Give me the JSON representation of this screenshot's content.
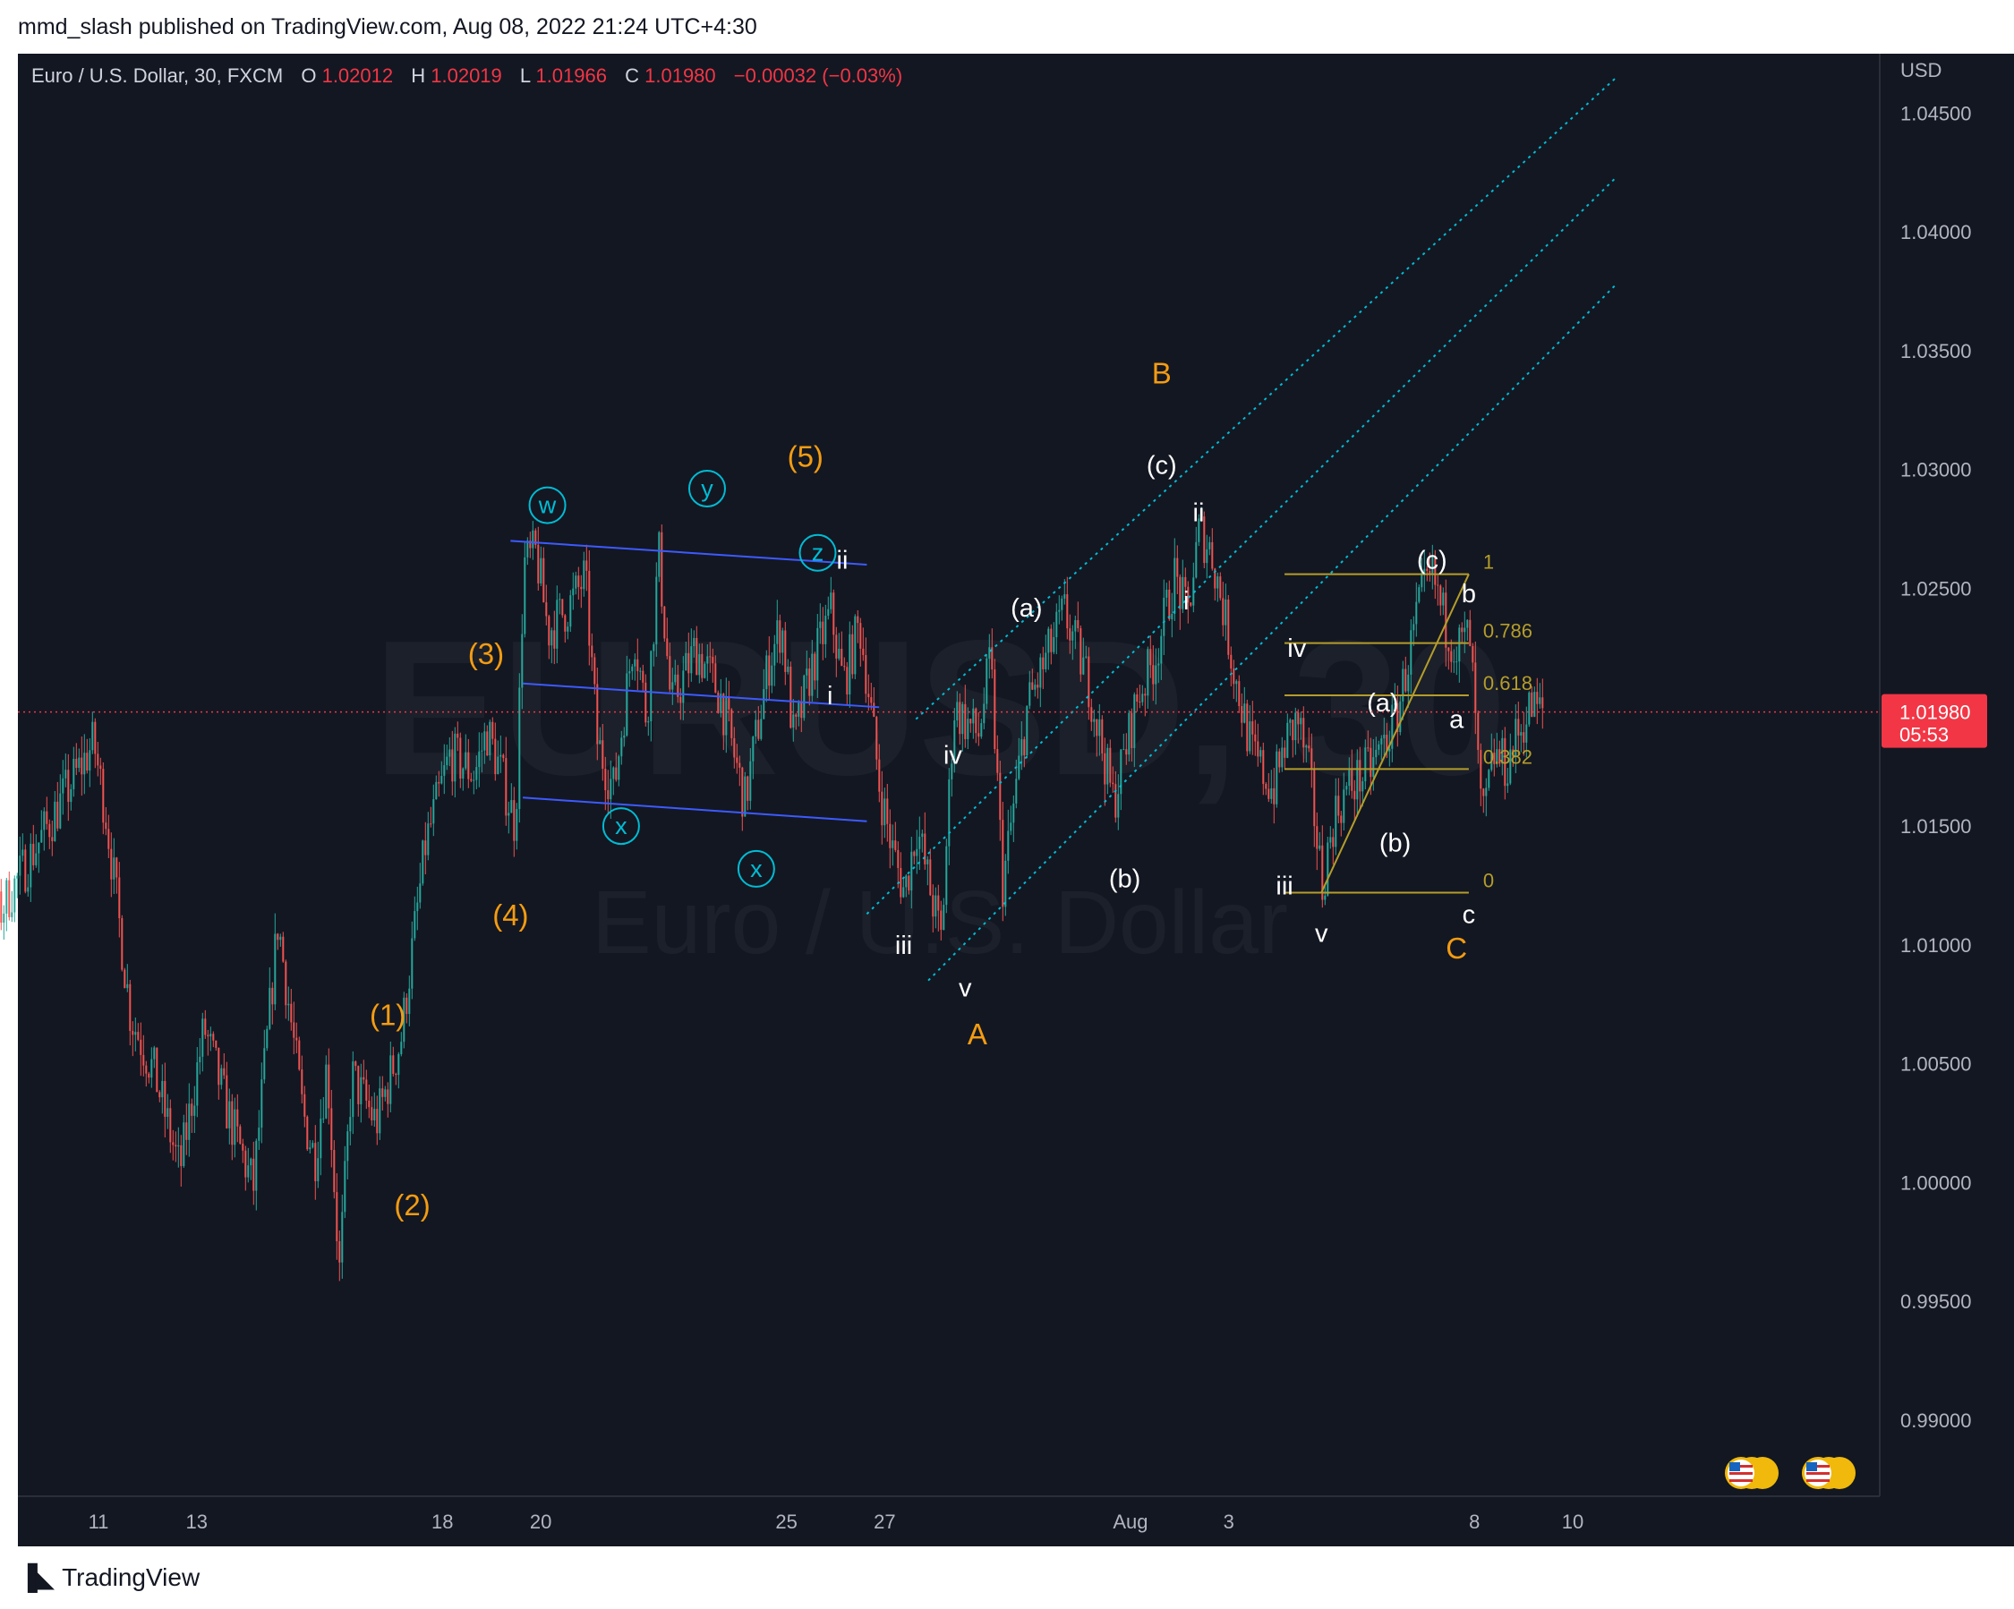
{
  "header": {
    "published": "mmd_slash published on TradingView.com, Aug 08, 2022 21:24 UTC+4:30"
  },
  "legend": {
    "symbol": "Euro / U.S. Dollar, 30, FXCM",
    "o_label": "O",
    "o_value": "1.02012",
    "h_label": "H",
    "h_value": "1.02019",
    "l_label": "L",
    "l_value": "1.01966",
    "c_label": "C",
    "c_value": "1.01980",
    "change": "−0.00032 (−0.03%)"
  },
  "watermark": {
    "symbol": "EURUSD, 30",
    "name": "Euro / U.S. Dollar"
  },
  "footer": {
    "brand": "TradingView"
  },
  "colors": {
    "background": "#131722",
    "up_candle": "#26a69a",
    "down_candle": "#ef5350",
    "wave_orange": "#f39c12",
    "wave_white": "#ffffff",
    "wave_cyan": "#00bcd4",
    "channel_blue": "#3d5afe",
    "fib_yellow": "#b59d2a",
    "price_line": "#f23645",
    "axis_text": "#b2b5be"
  },
  "chart_data": {
    "type": "candlestick",
    "symbol": "EURUSD",
    "timeframe": "30",
    "y_unit": "USD",
    "ylim": [
      0.9868,
      1.0475
    ],
    "y_ticks": [
      "1.04500",
      "1.04000",
      "1.03500",
      "1.03000",
      "1.02500",
      "1.02000",
      "1.01500",
      "1.01000",
      "1.00500",
      "1.00000",
      "0.99500",
      "0.99000"
    ],
    "x_ticks": [
      "11",
      "13",
      "18",
      "20",
      "25",
      "27",
      "Aug",
      "3",
      "8",
      "10"
    ],
    "x_tick_dates": [
      "2022-07-11",
      "2022-07-13",
      "2022-07-18",
      "2022-07-20",
      "2022-07-25",
      "2022-07-27",
      "2022-08-01",
      "2022-08-03",
      "2022-08-08",
      "2022-08-10"
    ],
    "current_price": {
      "price": "1.01980",
      "countdown": "05:53",
      "value": 1.0198
    },
    "price_path": [
      [
        "2022-07-08 00:00",
        1.0165
      ],
      [
        "2022-07-08 12:00",
        1.0185
      ],
      [
        "2022-07-08 20:00",
        1.0095
      ],
      [
        "2022-07-11 06:00",
        1.0185
      ],
      [
        "2022-07-11 12:00",
        1.0155
      ],
      [
        "2022-07-12 00:00",
        1.007
      ],
      [
        "2022-07-12 12:00",
        1.0045
      ],
      [
        "2022-07-13 00:00",
        1.0005
      ],
      [
        "2022-07-13 12:00",
        1.0065
      ],
      [
        "2022-07-14 00:00",
        1.0028
      ],
      [
        "2022-07-14 12:00",
        0.9998
      ],
      [
        "2022-07-15 00:00",
        1.011
      ],
      [
        "2022-07-15 12:00",
        1.003
      ],
      [
        "2022-07-15 18:00",
        1.001
      ],
      [
        "2022-07-16 00:00",
        1.005
      ],
      [
        "2022-07-16 06:00",
        0.9962
      ],
      [
        "2022-07-16 12:00",
        1.0045
      ],
      [
        "2022-07-17 00:00",
        1.0025
      ],
      [
        "2022-07-17 12:00",
        1.006
      ],
      [
        "2022-07-18 00:00",
        1.0142
      ],
      [
        "2022-07-18 12:00",
        1.018
      ],
      [
        "2022-07-19 00:00",
        1.0172
      ],
      [
        "2022-07-19 06:00",
        1.019
      ],
      [
        "2022-07-19 12:00",
        1.0175
      ],
      [
        "2022-07-19 20:00",
        1.015
      ],
      [
        "2022-07-20 00:00",
        1.026
      ],
      [
        "2022-07-20 06:00",
        1.0265
      ],
      [
        "2022-07-20 12:00",
        1.0232
      ],
      [
        "2022-07-21 00:00",
        1.0245
      ],
      [
        "2022-07-21 06:00",
        1.0255
      ],
      [
        "2022-07-21 12:00",
        1.0185
      ],
      [
        "2022-07-21 20:00",
        1.0165
      ],
      [
        "2022-07-22 06:00",
        1.0232
      ],
      [
        "2022-07-22 12:00",
        1.0195
      ],
      [
        "2022-07-22 18:00",
        1.0265
      ],
      [
        "2022-07-23 00:00",
        1.02
      ],
      [
        "2022-07-23 12:00",
        1.0225
      ],
      [
        "2022-07-24 00:00",
        1.0205
      ],
      [
        "2022-07-24 12:00",
        1.016
      ],
      [
        "2022-07-25 00:00",
        1.022
      ],
      [
        "2022-07-25 06:00",
        1.0235
      ],
      [
        "2022-07-25 12:00",
        1.0185
      ],
      [
        "2022-07-25 20:00",
        1.0215
      ],
      [
        "2022-07-26 06:00",
        1.024
      ],
      [
        "2022-07-26 12:00",
        1.021
      ],
      [
        "2022-07-26 20:00",
        1.0235
      ],
      [
        "2022-07-27 00:00",
        1.021
      ],
      [
        "2022-07-27 06:00",
        1.0165
      ],
      [
        "2022-07-27 12:00",
        1.014
      ],
      [
        "2022-07-27 18:00",
        1.0122
      ],
      [
        "2022-07-28 00:00",
        1.015
      ],
      [
        "2022-07-28 06:00",
        1.0125
      ],
      [
        "2022-07-28 12:00",
        1.0102
      ],
      [
        "2022-07-28 18:00",
        1.02
      ],
      [
        "2022-07-29 06:00",
        1.0188
      ],
      [
        "2022-07-29 12:00",
        1.022
      ],
      [
        "2022-07-29 18:00",
        1.0125
      ],
      [
        "2022-07-30 06:00",
        1.02
      ],
      [
        "2022-07-31 00:00",
        1.024
      ],
      [
        "2022-07-31 12:00",
        1.021
      ],
      [
        "2022-08-01 00:00",
        1.016
      ],
      [
        "2022-08-01 12:00",
        1.0205
      ],
      [
        "2022-08-01 20:00",
        1.022
      ],
      [
        "2022-08-02 06:00",
        1.0255
      ],
      [
        "2022-08-02 12:00",
        1.0238
      ],
      [
        "2022-08-02 18:00",
        1.0275
      ],
      [
        "2022-08-03 00:00",
        1.0265
      ],
      [
        "2022-08-03 06:00",
        1.024
      ],
      [
        "2022-08-03 12:00",
        1.021
      ],
      [
        "2022-08-03 20:00",
        1.018
      ],
      [
        "2022-08-04 06:00",
        1.0165
      ],
      [
        "2022-08-04 12:00",
        1.0185
      ],
      [
        "2022-08-04 18:00",
        1.0195
      ],
      [
        "2022-08-05 00:00",
        1.017
      ],
      [
        "2022-08-05 06:00",
        1.0125
      ],
      [
        "2022-08-05 12:00",
        1.0155
      ],
      [
        "2022-08-05 18:00",
        1.0165
      ],
      [
        "2022-08-06 06:00",
        1.0175
      ],
      [
        "2022-08-06 18:00",
        1.0195
      ],
      [
        "2022-08-07 06:00",
        1.0245
      ],
      [
        "2022-08-07 12:00",
        1.0255
      ],
      [
        "2022-08-07 18:00",
        1.0235
      ],
      [
        "2022-08-08 00:00",
        1.0225
      ],
      [
        "2022-08-08 06:00",
        1.023
      ],
      [
        "2022-08-08 12:00",
        1.015
      ],
      [
        "2022-08-08 18:00",
        1.018
      ],
      [
        "2022-08-09 00:00",
        1.0175
      ],
      [
        "2022-08-09 06:00",
        1.019
      ],
      [
        "2022-08-09 12:00",
        1.02
      ],
      [
        "2022-08-09 18:00",
        1.0198
      ]
    ],
    "wave_labels": [
      {
        "text": "(1)",
        "color": "orange",
        "date": "2022-07-17 06:00",
        "price": 1.007
      },
      {
        "text": "(2)",
        "color": "orange",
        "date": "2022-07-17 18:00",
        "price": 0.999
      },
      {
        "text": "(3)",
        "color": "orange",
        "date": "2022-07-19 06:00",
        "price": 1.0222
      },
      {
        "text": "(4)",
        "color": "orange",
        "date": "2022-07-19 18:00",
        "price": 1.0112
      },
      {
        "text": "(5)",
        "color": "orange",
        "date": "2022-07-25 18:00",
        "price": 1.0305
      },
      {
        "text": "A",
        "color": "orange",
        "date": "2022-07-29 06:00",
        "price": 1.0062
      },
      {
        "text": "B",
        "color": "orange",
        "date": "2022-08-02 00:00",
        "price": 1.034
      },
      {
        "text": "C",
        "color": "orange",
        "date": "2022-08-08 00:00",
        "price": 1.0098
      },
      {
        "text": "w",
        "color": "cyan_circle",
        "date": "2022-07-20 12:00",
        "price": 1.0285
      },
      {
        "text": "y",
        "color": "cyan_circle",
        "date": "2022-07-23 18:00",
        "price": 1.0292
      },
      {
        "text": "z",
        "color": "cyan_circle",
        "date": "2022-07-26 00:00",
        "price": 1.0265
      },
      {
        "text": "x",
        "color": "cyan_circle",
        "date": "2022-07-22 00:00",
        "price": 1.015
      },
      {
        "text": "x",
        "color": "cyan_circle",
        "date": "2022-07-24 18:00",
        "price": 1.0132
      },
      {
        "text": "ii",
        "color": "white",
        "date": "2022-07-26 12:00",
        "price": 1.0262
      },
      {
        "text": "i",
        "color": "white",
        "date": "2022-07-26 06:00",
        "price": 1.0205
      },
      {
        "text": "iii",
        "color": "white",
        "date": "2022-07-27 18:00",
        "price": 1.01
      },
      {
        "text": "iv",
        "color": "white",
        "date": "2022-07-28 18:00",
        "price": 1.018
      },
      {
        "text": "v",
        "color": "white",
        "date": "2022-07-29 00:00",
        "price": 1.0082
      },
      {
        "text": "(a)",
        "color": "white",
        "date": "2022-07-30 06:00",
        "price": 1.0242
      },
      {
        "text": "(b)",
        "color": "white",
        "date": "2022-08-01 06:00",
        "price": 1.0128
      },
      {
        "text": "(c)",
        "color": "white",
        "date": "2022-08-02 00:00",
        "price": 1.0302
      },
      {
        "text": "ii",
        "color": "white",
        "date": "2022-08-02 18:00",
        "price": 1.0282
      },
      {
        "text": "i",
        "color": "white",
        "date": "2022-08-02 12:00",
        "price": 1.0245
      },
      {
        "text": "iv",
        "color": "white",
        "date": "2022-08-04 18:00",
        "price": 1.0225
      },
      {
        "text": "iii",
        "color": "white",
        "date": "2022-08-04 12:00",
        "price": 1.0125
      },
      {
        "text": "v",
        "color": "white",
        "date": "2022-08-05 06:00",
        "price": 1.0105
      },
      {
        "text": "(a)",
        "color": "white",
        "date": "2022-08-06 12:00",
        "price": 1.0202
      },
      {
        "text": "(b)",
        "color": "white",
        "date": "2022-08-06 18:00",
        "price": 1.0143
      },
      {
        "text": "(c)",
        "color": "white",
        "date": "2022-08-07 12:00",
        "price": 1.0262
      },
      {
        "text": "a",
        "color": "white",
        "date": "2022-08-08 00:00",
        "price": 1.0195
      },
      {
        "text": "b",
        "color": "white",
        "date": "2022-08-08 06:00",
        "price": 1.0248
      },
      {
        "text": "c",
        "color": "white",
        "date": "2022-08-08 06:00",
        "price": 1.0113
      }
    ],
    "fib_levels": [
      {
        "label": "1",
        "price": 1.0256
      },
      {
        "label": "0.786",
        "price": 1.0227
      },
      {
        "label": "0.618",
        "price": 1.0205
      },
      {
        "label": "0.382",
        "price": 1.0174
      },
      {
        "label": "0",
        "price": 1.0122
      }
    ],
    "fib_range": {
      "start": "2022-08-04 12:00",
      "end": "2022-08-08 06:00"
    },
    "fib_trend": {
      "from": [
        "2022-08-05 06:00",
        1.0122
      ],
      "to": [
        "2022-08-08 06:00",
        1.0256
      ]
    },
    "horizontal_channel": {
      "upper": [
        [
          "2022-07-19 18:00",
          1.027
        ],
        [
          "2022-07-27 00:00",
          1.026
        ]
      ],
      "mid": [
        [
          "2022-07-20 00:00",
          1.021
        ],
        [
          "2022-07-27 06:00",
          1.02
        ]
      ],
      "lower": [
        [
          "2022-07-20 00:00",
          1.0162
        ],
        [
          "2022-07-27 00:00",
          1.0152
        ]
      ]
    },
    "rising_channel": {
      "upper": [
        [
          "2022-07-28 00:00",
          1.0195
        ],
        [
          "2022-08-11 06:00",
          1.0465
        ]
      ],
      "mid": [
        [
          "2022-07-27 00:00",
          1.0113
        ],
        [
          "2022-08-11 06:00",
          1.0423
        ]
      ],
      "lower": [
        [
          "2022-07-28 06:00",
          1.0085
        ],
        [
          "2022-08-11 06:00",
          1.0378
        ]
      ]
    },
    "grid": false,
    "legend_position": "top-left"
  }
}
